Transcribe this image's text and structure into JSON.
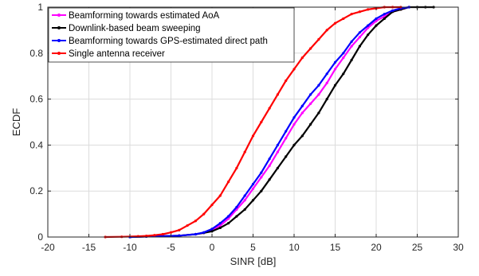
{
  "chart_data": {
    "type": "line",
    "title": "",
    "xlabel": "SINR [dB]",
    "ylabel": "ECDF",
    "xlim": [
      -20,
      30
    ],
    "ylim": [
      0,
      1
    ],
    "xticks": [
      -20,
      -15,
      -10,
      -5,
      0,
      5,
      10,
      15,
      20,
      25,
      30
    ],
    "xtick_labels": [
      "-20",
      "-15",
      "-10",
      "-5",
      "0",
      "5",
      "10",
      "15",
      "20",
      "25",
      "30"
    ],
    "yticks": [
      0,
      0.2,
      0.4,
      0.6,
      0.8,
      1
    ],
    "ytick_labels": [
      "0",
      "0.2",
      "0.4",
      "0.6",
      "0.8",
      "1"
    ],
    "grid": true,
    "legend_position": "top-left",
    "series": [
      {
        "name": "Beamforming towards estimated AoA",
        "color": "#ff00ff",
        "marker": "dot",
        "x": [
          -10,
          -8,
          -6,
          -4,
          -2,
          -1,
          0,
          1,
          2,
          3,
          4,
          5,
          6,
          7,
          8,
          9,
          10,
          11,
          12,
          13,
          14,
          15,
          16,
          17,
          18,
          19,
          20,
          21,
          22,
          23,
          24
        ],
        "y": [
          0,
          0.002,
          0.004,
          0.006,
          0.012,
          0.018,
          0.03,
          0.05,
          0.08,
          0.12,
          0.16,
          0.21,
          0.26,
          0.31,
          0.37,
          0.43,
          0.49,
          0.54,
          0.58,
          0.62,
          0.67,
          0.73,
          0.78,
          0.83,
          0.87,
          0.91,
          0.94,
          0.96,
          0.98,
          0.99,
          1.0
        ]
      },
      {
        "name": "Downlink-based beam sweeping",
        "color": "#000000",
        "marker": "dot",
        "x": [
          -10,
          -8,
          -6,
          -4,
          -2,
          -1,
          0,
          1,
          2,
          3,
          4,
          5,
          6,
          7,
          8,
          9,
          10,
          11,
          12,
          13,
          14,
          15,
          16,
          17,
          18,
          19,
          20,
          21,
          22,
          23,
          24,
          25,
          26,
          27
        ],
        "y": [
          0,
          0.002,
          0.004,
          0.006,
          0.012,
          0.018,
          0.025,
          0.04,
          0.06,
          0.09,
          0.12,
          0.16,
          0.2,
          0.25,
          0.3,
          0.35,
          0.4,
          0.44,
          0.49,
          0.54,
          0.6,
          0.66,
          0.71,
          0.77,
          0.83,
          0.88,
          0.92,
          0.95,
          0.98,
          0.99,
          1.0,
          1.0,
          1.0,
          1.0
        ]
      },
      {
        "name": "Beamforming towards GPS-estimated direct path",
        "color": "#0000ff",
        "marker": "dot",
        "x": [
          -10,
          -8,
          -6,
          -4,
          -2,
          -1,
          0,
          1,
          2,
          3,
          4,
          5,
          6,
          7,
          8,
          9,
          10,
          11,
          12,
          13,
          14,
          15,
          16,
          17,
          18,
          19,
          20,
          21,
          22,
          23,
          24
        ],
        "y": [
          0,
          0.002,
          0.004,
          0.006,
          0.012,
          0.02,
          0.035,
          0.06,
          0.09,
          0.13,
          0.18,
          0.23,
          0.28,
          0.34,
          0.4,
          0.46,
          0.52,
          0.57,
          0.62,
          0.66,
          0.71,
          0.76,
          0.8,
          0.85,
          0.89,
          0.92,
          0.95,
          0.97,
          0.985,
          0.995,
          1.0
        ]
      },
      {
        "name": "Single antenna receiver",
        "color": "#ff0000",
        "marker": "dot",
        "x": [
          -13,
          -11,
          -9,
          -8,
          -7,
          -6,
          -5,
          -4,
          -3,
          -2,
          -1,
          0,
          1,
          2,
          3,
          4,
          5,
          6,
          7,
          8,
          9,
          10,
          11,
          12,
          13,
          14,
          15,
          16,
          17,
          18,
          19,
          20,
          21,
          22,
          23
        ],
        "y": [
          0,
          0.001,
          0.003,
          0.005,
          0.008,
          0.012,
          0.02,
          0.03,
          0.05,
          0.07,
          0.1,
          0.14,
          0.18,
          0.24,
          0.3,
          0.37,
          0.44,
          0.5,
          0.56,
          0.62,
          0.68,
          0.73,
          0.78,
          0.82,
          0.86,
          0.9,
          0.93,
          0.95,
          0.97,
          0.98,
          0.99,
          0.995,
          1.0,
          1.0,
          1.0
        ]
      }
    ]
  }
}
